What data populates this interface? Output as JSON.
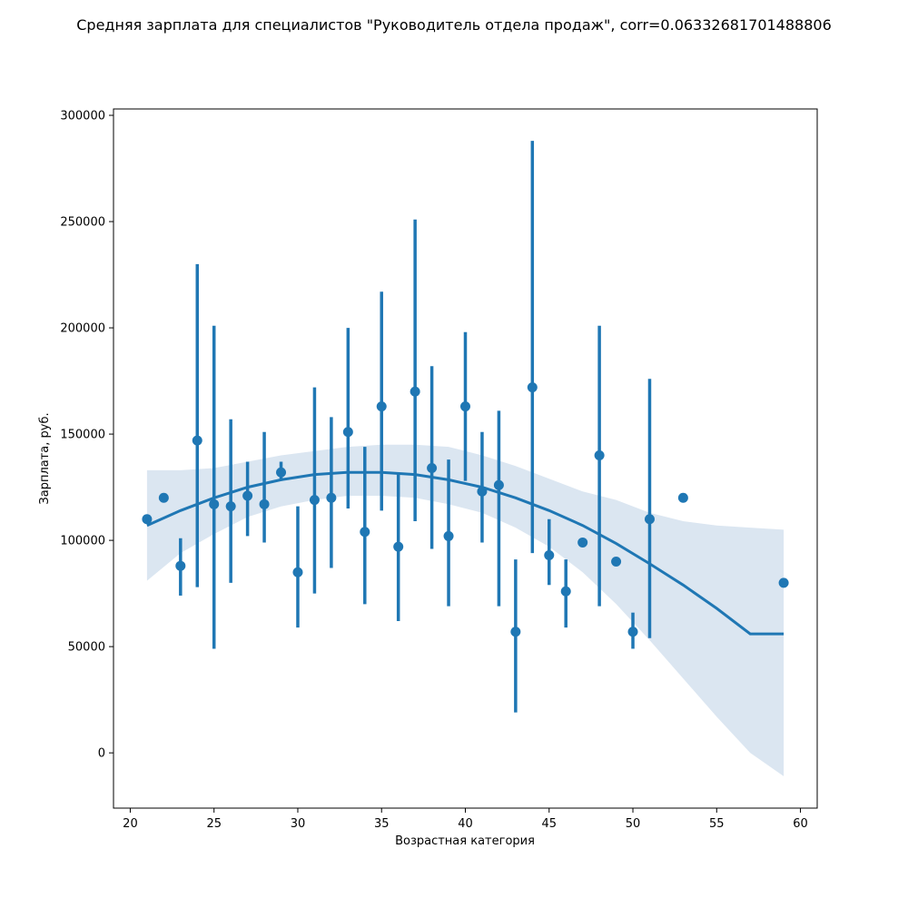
{
  "chart_data": {
    "type": "scatter",
    "title": "Средняя зарплата для специалистов \"Руководитель отдела продаж\", corr=0.06332681701488806",
    "xlabel": "Возрастная категория",
    "ylabel": "Зарплата, руб.",
    "xlim": [
      19,
      61
    ],
    "ylim": [
      -26000,
      303000
    ],
    "xticks": [
      20,
      25,
      30,
      35,
      40,
      45,
      50,
      55,
      60
    ],
    "yticks": [
      0,
      50000,
      100000,
      150000,
      200000,
      250000,
      300000
    ],
    "grid": false,
    "colors": {
      "point": "#1f77b4",
      "band": "#dbe6f1"
    },
    "series": [
      {
        "kind": "point-estimate-with-error-bars",
        "points": [
          {
            "x": 21,
            "y": 110000,
            "lo": null,
            "hi": null
          },
          {
            "x": 22,
            "y": 120000,
            "lo": null,
            "hi": null
          },
          {
            "x": 23,
            "y": 88000,
            "lo": 74000,
            "hi": 101000
          },
          {
            "x": 24,
            "y": 147000,
            "lo": 78000,
            "hi": 230000
          },
          {
            "x": 25,
            "y": 117000,
            "lo": 49000,
            "hi": 201000
          },
          {
            "x": 26,
            "y": 116000,
            "lo": 80000,
            "hi": 157000
          },
          {
            "x": 27,
            "y": 121000,
            "lo": 102000,
            "hi": 137000
          },
          {
            "x": 28,
            "y": 117000,
            "lo": 99000,
            "hi": 151000
          },
          {
            "x": 29,
            "y": 132000,
            "lo": 128000,
            "hi": 137000
          },
          {
            "x": 30,
            "y": 85000,
            "lo": 59000,
            "hi": 116000
          },
          {
            "x": 31,
            "y": 119000,
            "lo": 75000,
            "hi": 172000
          },
          {
            "x": 32,
            "y": 120000,
            "lo": 87000,
            "hi": 158000
          },
          {
            "x": 33,
            "y": 151000,
            "lo": 115000,
            "hi": 200000
          },
          {
            "x": 34,
            "y": 104000,
            "lo": 70000,
            "hi": 144000
          },
          {
            "x": 35,
            "y": 163000,
            "lo": 114000,
            "hi": 217000
          },
          {
            "x": 36,
            "y": 97000,
            "lo": 62000,
            "hi": 131000
          },
          {
            "x": 37,
            "y": 170000,
            "lo": 109000,
            "hi": 251000
          },
          {
            "x": 38,
            "y": 134000,
            "lo": 96000,
            "hi": 182000
          },
          {
            "x": 39,
            "y": 102000,
            "lo": 69000,
            "hi": 138000
          },
          {
            "x": 40,
            "y": 163000,
            "lo": 128000,
            "hi": 198000
          },
          {
            "x": 41,
            "y": 123000,
            "lo": 99000,
            "hi": 151000
          },
          {
            "x": 42,
            "y": 126000,
            "lo": 69000,
            "hi": 161000
          },
          {
            "x": 43,
            "y": 57000,
            "lo": 19000,
            "hi": 91000
          },
          {
            "x": 44,
            "y": 172000,
            "lo": 94000,
            "hi": 288000
          },
          {
            "x": 45,
            "y": 93000,
            "lo": 79000,
            "hi": 110000
          },
          {
            "x": 46,
            "y": 76000,
            "lo": 59000,
            "hi": 91000
          },
          {
            "x": 47,
            "y": 99000,
            "lo": null,
            "hi": null
          },
          {
            "x": 48,
            "y": 140000,
            "lo": 69000,
            "hi": 201000
          },
          {
            "x": 49,
            "y": 90000,
            "lo": null,
            "hi": null
          },
          {
            "x": 50,
            "y": 57000,
            "lo": 49000,
            "hi": 66000
          },
          {
            "x": 51,
            "y": 110000,
            "lo": 54000,
            "hi": 176000
          },
          {
            "x": 53,
            "y": 120000,
            "lo": null,
            "hi": null
          },
          {
            "x": 59,
            "y": 80000,
            "lo": null,
            "hi": null
          }
        ]
      },
      {
        "kind": "regression-line-order-2",
        "x": [
          21,
          23,
          25,
          27,
          29,
          31,
          33,
          35,
          37,
          39,
          41,
          43,
          45,
          47,
          49,
          51,
          53,
          55,
          57,
          59
        ],
        "y": [
          107000,
          114000,
          120000,
          125000,
          128500,
          131000,
          132000,
          132000,
          131000,
          128500,
          125000,
          120000,
          114000,
          107000,
          98500,
          89000,
          79000,
          68000,
          56000,
          56000
        ]
      },
      {
        "kind": "confidence-band",
        "x": [
          21,
          23,
          25,
          27,
          29,
          31,
          33,
          35,
          37,
          39,
          41,
          43,
          45,
          47,
          49,
          51,
          53,
          55,
          57,
          59
        ],
        "lo": [
          81000,
          94000,
          103000,
          111000,
          116000,
          119000,
          121000,
          121000,
          120000,
          117000,
          113000,
          106000,
          97000,
          85000,
          70000,
          53000,
          35000,
          17000,
          0,
          -11000
        ],
        "hi": [
          133000,
          133000,
          134000,
          137000,
          140000,
          142000,
          144000,
          145000,
          145000,
          144000,
          140000,
          135000,
          129000,
          123000,
          119000,
          113000,
          109000,
          107000,
          106000,
          105000
        ]
      }
    ]
  }
}
